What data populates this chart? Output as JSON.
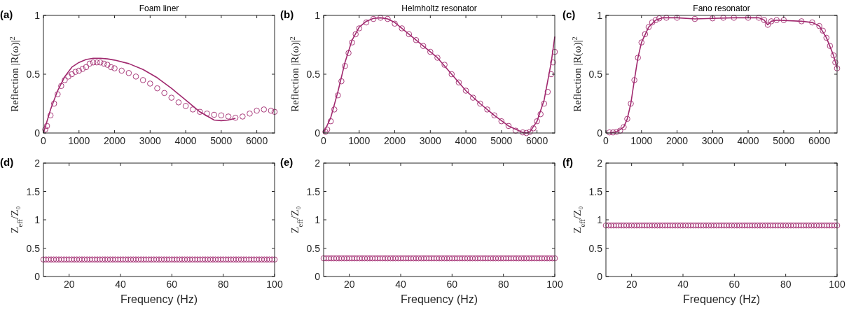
{
  "chart_data": [
    {
      "type": "scatter",
      "title": "Foam liner",
      "ylabel": "Reflection |R(ω)|$^{2}$",
      "annotations": [
        "(a)"
      ],
      "xlim": [
        0,
        6500
      ],
      "xticks": [
        0,
        1000,
        2000,
        3000,
        4000,
        5000,
        6000
      ],
      "ylim": [
        0,
        1
      ],
      "yticks": [
        0,
        0.5,
        1
      ],
      "marker": "circle",
      "series": [
        {
          "type": "scatter",
          "color": "#a0286e",
          "x": [
            50,
            100,
            200,
            300,
            400,
            500,
            600,
            700,
            800,
            900,
            1000,
            1100,
            1200,
            1300,
            1400,
            1500,
            1600,
            1700,
            1800,
            1900,
            2000,
            2200,
            2400,
            2600,
            2800,
            3000,
            3200,
            3400,
            3600,
            3800,
            4000,
            4200,
            4400,
            4600,
            4800,
            5000,
            5200,
            5400,
            5600,
            5800,
            6000,
            6200,
            6400,
            6500
          ],
          "values": [
            0.03,
            0.06,
            0.15,
            0.25,
            0.33,
            0.4,
            0.45,
            0.48,
            0.5,
            0.52,
            0.53,
            0.545,
            0.56,
            0.59,
            0.6,
            0.6,
            0.6,
            0.59,
            0.58,
            0.56,
            0.55,
            0.53,
            0.51,
            0.48,
            0.45,
            0.42,
            0.38,
            0.34,
            0.3,
            0.26,
            0.23,
            0.2,
            0.18,
            0.165,
            0.155,
            0.15,
            0.14,
            0.13,
            0.14,
            0.165,
            0.19,
            0.2,
            0.19,
            0.18
          ]
        },
        {
          "type": "line",
          "color": "#a0286e",
          "marker": "none",
          "x": [
            0,
            200,
            400,
            600,
            800,
            1000,
            1200,
            1400,
            1600,
            1800,
            2000,
            2400,
            2800,
            3200,
            3600,
            4000,
            4400,
            4800,
            5000,
            5200,
            5400
          ],
          "values": [
            0,
            0.2,
            0.36,
            0.48,
            0.56,
            0.6,
            0.625,
            0.635,
            0.635,
            0.63,
            0.62,
            0.59,
            0.54,
            0.47,
            0.38,
            0.28,
            0.18,
            0.11,
            0.105,
            0.11,
            0.125
          ]
        }
      ]
    },
    {
      "type": "scatter",
      "title": "Helmholtz resonator",
      "ylabel": "Reflection |R(ω)|$^{2}$",
      "annotations": [
        "(b)"
      ],
      "xlim": [
        0,
        6500
      ],
      "xticks": [
        0,
        1000,
        2000,
        3000,
        4000,
        5000,
        6000
      ],
      "ylim": [
        0,
        1
      ],
      "yticks": [
        0,
        0.5,
        1
      ],
      "marker": "circle",
      "series": [
        {
          "type": "scatter",
          "color": "#a0286e",
          "x": [
            50,
            100,
            200,
            300,
            400,
            500,
            600,
            700,
            800,
            900,
            1000,
            1200,
            1400,
            1600,
            1800,
            2000,
            2200,
            2400,
            2600,
            2800,
            3000,
            3200,
            3400,
            3600,
            3800,
            4000,
            4200,
            4400,
            4600,
            4800,
            5000,
            5200,
            5400,
            5600,
            5700,
            5800,
            5900,
            6000,
            6100,
            6200,
            6300,
            6400,
            6450,
            6500
          ],
          "values": [
            0.01,
            0.03,
            0.1,
            0.2,
            0.32,
            0.44,
            0.57,
            0.68,
            0.77,
            0.84,
            0.89,
            0.94,
            0.97,
            0.98,
            0.97,
            0.93,
            0.89,
            0.84,
            0.79,
            0.74,
            0.69,
            0.64,
            0.58,
            0.5,
            0.43,
            0.36,
            0.3,
            0.25,
            0.2,
            0.15,
            0.1,
            0.06,
            0.02,
            0.005,
            0,
            0.01,
            0.04,
            0.1,
            0.16,
            0.25,
            0.35,
            0.5,
            0.6,
            0.69
          ]
        },
        {
          "type": "line",
          "color": "#a0286e",
          "marker": "none",
          "x": [
            0,
            200,
            400,
            600,
            800,
            1000,
            1200,
            1400,
            1600,
            1800,
            2000,
            2400,
            2800,
            3200,
            3600,
            4000,
            4400,
            4800,
            5200,
            5600,
            5700,
            5800,
            6000,
            6200,
            6400,
            6500
          ],
          "values": [
            0,
            0.13,
            0.35,
            0.6,
            0.79,
            0.9,
            0.95,
            0.975,
            0.98,
            0.97,
            0.94,
            0.84,
            0.74,
            0.64,
            0.5,
            0.36,
            0.25,
            0.15,
            0.06,
            0.005,
            0,
            0.01,
            0.1,
            0.28,
            0.6,
            0.82
          ]
        }
      ]
    },
    {
      "type": "scatter",
      "title": "Fano resonator",
      "ylabel": "Reflection |R(ω)|$^{2}$",
      "annotations": [
        "(c)"
      ],
      "xlim": [
        0,
        6500
      ],
      "xticks": [
        0,
        1000,
        2000,
        3000,
        4000,
        5000,
        6000
      ],
      "ylim": [
        0,
        1
      ],
      "yticks": [
        0,
        0.5,
        1
      ],
      "marker": "circle",
      "series": [
        {
          "type": "scatter",
          "color": "#a0286e",
          "x": [
            100,
            200,
            300,
            400,
            500,
            600,
            700,
            800,
            900,
            1000,
            1100,
            1200,
            1300,
            1400,
            1500,
            1700,
            2000,
            2500,
            3000,
            3300,
            3600,
            4000,
            4300,
            4450,
            4550,
            4650,
            4800,
            5000,
            5500,
            5800,
            6000,
            6100,
            6200,
            6300,
            6400,
            6450,
            6500
          ],
          "values": [
            0.005,
            0.005,
            0.01,
            0.02,
            0.05,
            0.12,
            0.25,
            0.45,
            0.64,
            0.77,
            0.84,
            0.9,
            0.94,
            0.96,
            0.975,
            0.98,
            0.98,
            0.97,
            0.975,
            0.98,
            0.98,
            0.98,
            0.98,
            0.96,
            0.92,
            0.95,
            0.96,
            0.96,
            0.95,
            0.94,
            0.91,
            0.87,
            0.81,
            0.74,
            0.66,
            0.6,
            0.55
          ]
        },
        {
          "type": "line",
          "color": "#a0286e",
          "marker": "none",
          "x": [
            100,
            300,
            500,
            600,
            700,
            800,
            900,
            1000,
            1200,
            1400,
            1600,
            2000,
            2500,
            3000,
            3600,
            4300,
            4450,
            4550,
            4650,
            4800,
            5500,
            5800,
            6000,
            6200,
            6400,
            6500
          ],
          "values": [
            0,
            0.01,
            0.05,
            0.12,
            0.25,
            0.45,
            0.64,
            0.77,
            0.9,
            0.96,
            0.98,
            0.98,
            0.97,
            0.975,
            0.98,
            0.98,
            0.96,
            0.92,
            0.95,
            0.96,
            0.95,
            0.94,
            0.91,
            0.81,
            0.66,
            0.55
          ]
        }
      ]
    },
    {
      "type": "scatter",
      "xlabel": "Frequency (Hz)",
      "ylabel": "Z$_{eff}$/Z₀",
      "annotations": [
        "(d)"
      ],
      "xlim": [
        10,
        100
      ],
      "xticks": [
        20,
        40,
        60,
        80,
        100
      ],
      "ylim": [
        0,
        2
      ],
      "yticks": [
        0,
        0.5,
        1,
        1.5,
        2
      ],
      "marker": "circle",
      "x": [
        10,
        11,
        12,
        13,
        14,
        15,
        16,
        17,
        18,
        19,
        20,
        21,
        22,
        23,
        24,
        25,
        26,
        27,
        28,
        29,
        30,
        31,
        32,
        33,
        34,
        35,
        36,
        37,
        38,
        39,
        40,
        41,
        42,
        43,
        44,
        45,
        46,
        47,
        48,
        49,
        50,
        51,
        52,
        53,
        54,
        55,
        56,
        57,
        58,
        59,
        60,
        61,
        62,
        63,
        64,
        65,
        66,
        67,
        68,
        69,
        70,
        71,
        72,
        73,
        74,
        75,
        76,
        77,
        78,
        79,
        80,
        81,
        82,
        83,
        84,
        85,
        86,
        87,
        88,
        89,
        90,
        91,
        92,
        93,
        94,
        95,
        96,
        97,
        98,
        99,
        100
      ],
      "series": [
        {
          "type": "scatter",
          "color": "#a0286e",
          "values": [
            0.3,
            0.3,
            0.3,
            0.3,
            0.3,
            0.3,
            0.3,
            0.3,
            0.3,
            0.3,
            0.3,
            0.3,
            0.3,
            0.3,
            0.3,
            0.3,
            0.3,
            0.3,
            0.3,
            0.3,
            0.3,
            0.3,
            0.3,
            0.3,
            0.3,
            0.3,
            0.3,
            0.3,
            0.3,
            0.3,
            0.3,
            0.3,
            0.3,
            0.3,
            0.3,
            0.3,
            0.3,
            0.3,
            0.3,
            0.3,
            0.3,
            0.3,
            0.3,
            0.3,
            0.3,
            0.3,
            0.3,
            0.3,
            0.3,
            0.3,
            0.3,
            0.3,
            0.3,
            0.3,
            0.3,
            0.3,
            0.3,
            0.3,
            0.3,
            0.3,
            0.3,
            0.3,
            0.3,
            0.3,
            0.3,
            0.3,
            0.3,
            0.3,
            0.3,
            0.3,
            0.3,
            0.3,
            0.3,
            0.3,
            0.3,
            0.3,
            0.3,
            0.3,
            0.3,
            0.3,
            0.3,
            0.3,
            0.3,
            0.3,
            0.3,
            0.3,
            0.3,
            0.3,
            0.3,
            0.3,
            0.3
          ]
        }
      ]
    },
    {
      "type": "scatter",
      "xlabel": "Frequency (Hz)",
      "ylabel": "Z$_{eff}$/Z₀",
      "annotations": [
        "(e)"
      ],
      "xlim": [
        10,
        100
      ],
      "xticks": [
        20,
        40,
        60,
        80,
        100
      ],
      "ylim": [
        0,
        2
      ],
      "yticks": [
        0,
        0.5,
        1,
        1.5,
        2
      ],
      "marker": "circle",
      "x": [
        10,
        11,
        12,
        13,
        14,
        15,
        16,
        17,
        18,
        19,
        20,
        21,
        22,
        23,
        24,
        25,
        26,
        27,
        28,
        29,
        30,
        31,
        32,
        33,
        34,
        35,
        36,
        37,
        38,
        39,
        40,
        41,
        42,
        43,
        44,
        45,
        46,
        47,
        48,
        49,
        50,
        51,
        52,
        53,
        54,
        55,
        56,
        57,
        58,
        59,
        60,
        61,
        62,
        63,
        64,
        65,
        66,
        67,
        68,
        69,
        70,
        71,
        72,
        73,
        74,
        75,
        76,
        77,
        78,
        79,
        80,
        81,
        82,
        83,
        84,
        85,
        86,
        87,
        88,
        89,
        90,
        91,
        92,
        93,
        94,
        95,
        96,
        97,
        98,
        99,
        100
      ],
      "series": [
        {
          "type": "scatter",
          "color": "#a0286e",
          "values": [
            0.32,
            0.32,
            0.32,
            0.32,
            0.32,
            0.32,
            0.32,
            0.32,
            0.32,
            0.32,
            0.32,
            0.32,
            0.32,
            0.32,
            0.32,
            0.32,
            0.32,
            0.32,
            0.32,
            0.32,
            0.32,
            0.32,
            0.32,
            0.32,
            0.32,
            0.32,
            0.32,
            0.32,
            0.32,
            0.32,
            0.32,
            0.32,
            0.32,
            0.32,
            0.32,
            0.32,
            0.32,
            0.32,
            0.32,
            0.32,
            0.32,
            0.32,
            0.32,
            0.32,
            0.32,
            0.32,
            0.32,
            0.32,
            0.32,
            0.32,
            0.32,
            0.32,
            0.32,
            0.32,
            0.32,
            0.32,
            0.32,
            0.32,
            0.32,
            0.32,
            0.32,
            0.32,
            0.32,
            0.32,
            0.32,
            0.32,
            0.32,
            0.32,
            0.32,
            0.32,
            0.32,
            0.32,
            0.32,
            0.32,
            0.32,
            0.32,
            0.32,
            0.32,
            0.32,
            0.32,
            0.32,
            0.32,
            0.32,
            0.32,
            0.32,
            0.32,
            0.32,
            0.32,
            0.32,
            0.32,
            0.32
          ]
        }
      ]
    },
    {
      "type": "scatter",
      "xlabel": "Frequency (Hz)",
      "ylabel": "Z$_{eff}$/Z₀",
      "annotations": [
        "(f)"
      ],
      "xlim": [
        10,
        100
      ],
      "xticks": [
        20,
        40,
        60,
        80,
        100
      ],
      "ylim": [
        0,
        2
      ],
      "yticks": [
        0,
        0.5,
        1,
        1.5,
        2
      ],
      "marker": "circle",
      "x": [
        10,
        11,
        12,
        13,
        14,
        15,
        16,
        17,
        18,
        19,
        20,
        21,
        22,
        23,
        24,
        25,
        26,
        27,
        28,
        29,
        30,
        31,
        32,
        33,
        34,
        35,
        36,
        37,
        38,
        39,
        40,
        41,
        42,
        43,
        44,
        45,
        46,
        47,
        48,
        49,
        50,
        51,
        52,
        53,
        54,
        55,
        56,
        57,
        58,
        59,
        60,
        61,
        62,
        63,
        64,
        65,
        66,
        67,
        68,
        69,
        70,
        71,
        72,
        73,
        74,
        75,
        76,
        77,
        78,
        79,
        80,
        81,
        82,
        83,
        84,
        85,
        86,
        87,
        88,
        89,
        90,
        91,
        92,
        93,
        94,
        95,
        96,
        97,
        98,
        99,
        100
      ],
      "series": [
        {
          "type": "scatter",
          "color": "#a0286e",
          "values": [
            0.9,
            0.9,
            0.9,
            0.9,
            0.9,
            0.9,
            0.9,
            0.9,
            0.9,
            0.9,
            0.9,
            0.9,
            0.9,
            0.9,
            0.9,
            0.9,
            0.9,
            0.9,
            0.9,
            0.9,
            0.9,
            0.9,
            0.9,
            0.9,
            0.9,
            0.9,
            0.9,
            0.9,
            0.9,
            0.9,
            0.9,
            0.9,
            0.9,
            0.9,
            0.9,
            0.9,
            0.9,
            0.9,
            0.9,
            0.9,
            0.9,
            0.9,
            0.9,
            0.9,
            0.9,
            0.9,
            0.9,
            0.9,
            0.9,
            0.9,
            0.9,
            0.9,
            0.9,
            0.9,
            0.9,
            0.9,
            0.9,
            0.9,
            0.9,
            0.9,
            0.9,
            0.9,
            0.9,
            0.9,
            0.9,
            0.9,
            0.9,
            0.9,
            0.9,
            0.9,
            0.9,
            0.9,
            0.9,
            0.9,
            0.9,
            0.9,
            0.9,
            0.9,
            0.9,
            0.9,
            0.9,
            0.9,
            0.9,
            0.9,
            0.9,
            0.9,
            0.9,
            0.9,
            0.9,
            0.9,
            0.9
          ]
        }
      ]
    }
  ]
}
